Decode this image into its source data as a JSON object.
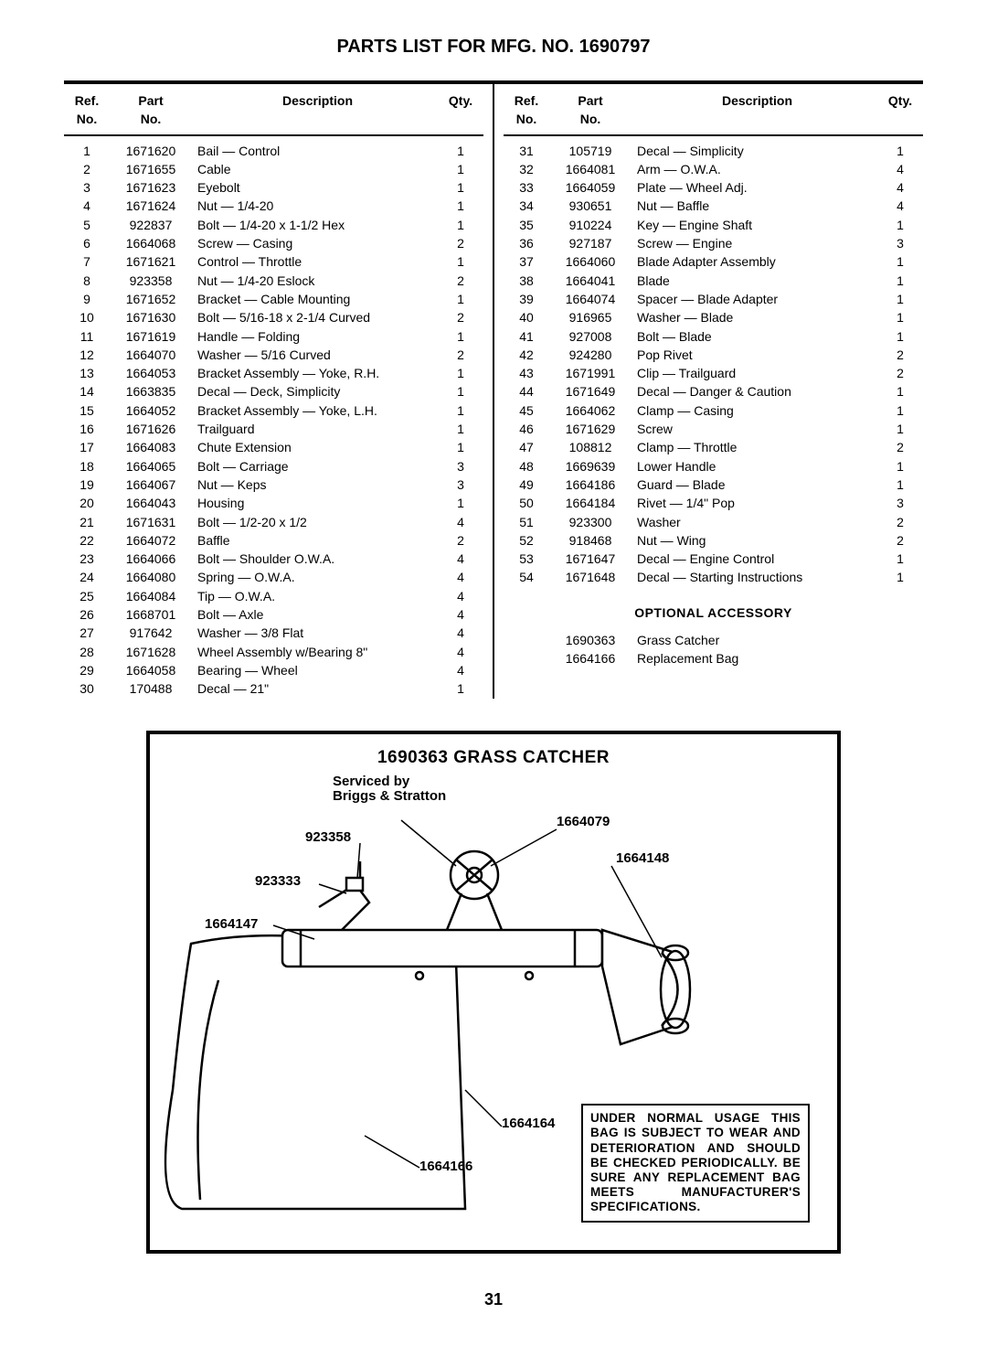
{
  "title": "PARTS LIST FOR MFG. NO. 1690797",
  "headers": {
    "ref": "Ref.\nNo.",
    "part": "Part\nNo.",
    "desc": "Description",
    "qty": "Qty."
  },
  "left": [
    {
      "ref": "1",
      "part": "1671620",
      "desc": "Bail — Control",
      "qty": "1"
    },
    {
      "ref": "2",
      "part": "1671655",
      "desc": "Cable",
      "qty": "1"
    },
    {
      "ref": "3",
      "part": "1671623",
      "desc": "Eyebolt",
      "qty": "1"
    },
    {
      "ref": "4",
      "part": "1671624",
      "desc": "Nut — 1/4-20",
      "qty": "1"
    },
    {
      "ref": "5",
      "part": "922837",
      "desc": "Bolt — 1/4-20 x 1-1/2 Hex",
      "qty": "1"
    },
    {
      "ref": "6",
      "part": "1664068",
      "desc": "Screw — Casing",
      "qty": "2"
    },
    {
      "ref": "7",
      "part": "1671621",
      "desc": "Control — Throttle",
      "qty": "1"
    },
    {
      "ref": "8",
      "part": "923358",
      "desc": "Nut — 1/4-20 Eslock",
      "qty": "2"
    },
    {
      "ref": "9",
      "part": "1671652",
      "desc": "Bracket — Cable Mounting",
      "qty": "1"
    },
    {
      "ref": "10",
      "part": "1671630",
      "desc": "Bolt — 5/16-18 x 2-1/4 Curved",
      "qty": "2"
    },
    {
      "ref": "11",
      "part": "1671619",
      "desc": "Handle — Folding",
      "qty": "1"
    },
    {
      "ref": "12",
      "part": "1664070",
      "desc": "Washer — 5/16 Curved",
      "qty": "2"
    },
    {
      "ref": "13",
      "part": "1664053",
      "desc": "Bracket Assembly — Yoke, R.H.",
      "qty": "1"
    },
    {
      "ref": "14",
      "part": "1663835",
      "desc": "Decal — Deck, Simplicity",
      "qty": "1"
    },
    {
      "ref": "15",
      "part": "1664052",
      "desc": "Bracket Assembly — Yoke, L.H.",
      "qty": "1"
    },
    {
      "ref": "16",
      "part": "1671626",
      "desc": "Trailguard",
      "qty": "1"
    },
    {
      "ref": "17",
      "part": "1664083",
      "desc": "Chute Extension",
      "qty": "1"
    },
    {
      "ref": "18",
      "part": "1664065",
      "desc": "Bolt — Carriage",
      "qty": "3"
    },
    {
      "ref": "19",
      "part": "1664067",
      "desc": "Nut — Keps",
      "qty": "3"
    },
    {
      "ref": "20",
      "part": "1664043",
      "desc": "Housing",
      "qty": "1"
    },
    {
      "ref": "21",
      "part": "1671631",
      "desc": "Bolt — 1/2-20 x 1/2",
      "qty": "4"
    },
    {
      "ref": "22",
      "part": "1664072",
      "desc": "Baffle",
      "qty": "2"
    },
    {
      "ref": "23",
      "part": "1664066",
      "desc": "Bolt — Shoulder O.W.A.",
      "qty": "4"
    },
    {
      "ref": "24",
      "part": "1664080",
      "desc": "Spring — O.W.A.",
      "qty": "4"
    },
    {
      "ref": "25",
      "part": "1664084",
      "desc": "Tip — O.W.A.",
      "qty": "4"
    },
    {
      "ref": "26",
      "part": "1668701",
      "desc": "Bolt — Axle",
      "qty": "4"
    },
    {
      "ref": "27",
      "part": "917642",
      "desc": "Washer — 3/8 Flat",
      "qty": "4"
    },
    {
      "ref": "28",
      "part": "1671628",
      "desc": "Wheel Assembly w/Bearing 8\"",
      "qty": "4"
    },
    {
      "ref": "29",
      "part": "1664058",
      "desc": "Bearing — Wheel",
      "qty": "4"
    },
    {
      "ref": "30",
      "part": "170488",
      "desc": "Decal — 21\"",
      "qty": "1"
    }
  ],
  "right": [
    {
      "ref": "31",
      "part": "105719",
      "desc": "Decal — Simplicity",
      "qty": "1"
    },
    {
      "ref": "32",
      "part": "1664081",
      "desc": "Arm — O.W.A.",
      "qty": "4"
    },
    {
      "ref": "33",
      "part": "1664059",
      "desc": "Plate — Wheel Adj.",
      "qty": "4"
    },
    {
      "ref": "34",
      "part": "930651",
      "desc": "Nut — Baffle",
      "qty": "4"
    },
    {
      "ref": "35",
      "part": "910224",
      "desc": "Key — Engine Shaft",
      "qty": "1"
    },
    {
      "ref": "36",
      "part": "927187",
      "desc": "Screw — Engine",
      "qty": "3"
    },
    {
      "ref": "37",
      "part": "1664060",
      "desc": "Blade Adapter Assembly",
      "qty": "1"
    },
    {
      "ref": "38",
      "part": "1664041",
      "desc": "Blade",
      "qty": "1"
    },
    {
      "ref": "39",
      "part": "1664074",
      "desc": "Spacer — Blade Adapter",
      "qty": "1"
    },
    {
      "ref": "40",
      "part": "916965",
      "desc": "Washer — Blade",
      "qty": "1"
    },
    {
      "ref": "41",
      "part": "927008",
      "desc": "Bolt — Blade",
      "qty": "1"
    },
    {
      "ref": "42",
      "part": "924280",
      "desc": "Pop Rivet",
      "qty": "2"
    },
    {
      "ref": "43",
      "part": "1671991",
      "desc": "Clip — Trailguard",
      "qty": "2"
    },
    {
      "ref": "44",
      "part": "1671649",
      "desc": "Decal — Danger & Caution",
      "qty": "1"
    },
    {
      "ref": "45",
      "part": "1664062",
      "desc": "Clamp — Casing",
      "qty": "1"
    },
    {
      "ref": "46",
      "part": "1671629",
      "desc": "Screw",
      "qty": "1"
    },
    {
      "ref": "47",
      "part": "108812",
      "desc": "Clamp — Throttle",
      "qty": "2"
    },
    {
      "ref": "48",
      "part": "1669639",
      "desc": "Lower Handle",
      "qty": "1"
    },
    {
      "ref": "49",
      "part": "1664186",
      "desc": "Guard — Blade",
      "qty": "1"
    },
    {
      "ref": "50",
      "part": "1664184",
      "desc": "Rivet — 1/4\" Pop",
      "qty": "3"
    },
    {
      "ref": "51",
      "part": "923300",
      "desc": "Washer",
      "qty": "2"
    },
    {
      "ref": "52",
      "part": "918468",
      "desc": "Nut — Wing",
      "qty": "2"
    },
    {
      "ref": "53",
      "part": "1671647",
      "desc": "Decal — Engine Control",
      "qty": "1"
    },
    {
      "ref": "54",
      "part": "1671648",
      "desc": "Decal — Starting Instructions",
      "qty": "1"
    }
  ],
  "optional_title": "OPTIONAL ACCESSORY",
  "optional": [
    {
      "part": "1690363",
      "desc": "Grass Catcher"
    },
    {
      "part": "1664166",
      "desc": "Replacement Bag"
    }
  ],
  "diagram": {
    "title": "1690363 GRASS CATCHER",
    "callouts": {
      "serviced": "Serviced by\nBriggs & Stratton",
      "c923358": "923358",
      "c923333": "923333",
      "c1664147": "1664147",
      "c1664079": "1664079",
      "c1664148": "1664148",
      "c1664164": "1664164",
      "c1664166": "1664166"
    },
    "warning": "UNDER NORMAL USAGE THIS BAG IS SUBJECT TO WEAR AND DETERIORATION AND SHOULD BE CHECKED PERIODICALLY. BE SURE ANY REPLACEMENT BAG MEETS MANUFACTURER'S SPECIFICATIONS."
  },
  "page_num": "31"
}
